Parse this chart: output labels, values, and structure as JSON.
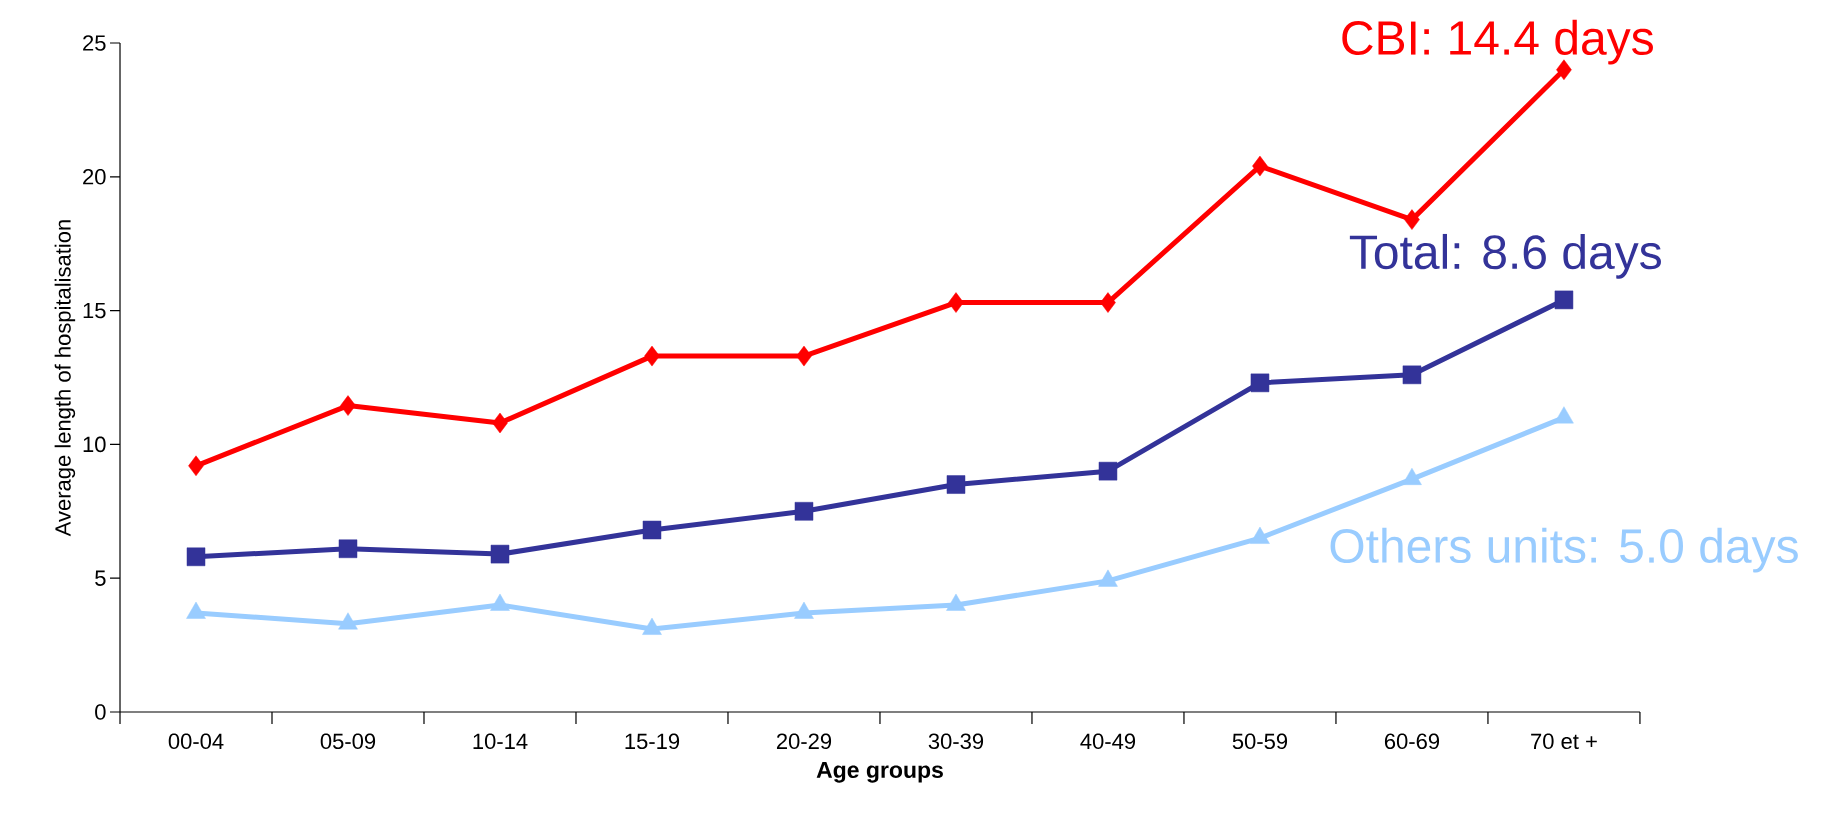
{
  "chart_data": {
    "type": "line",
    "xlabel": "Age groups",
    "ylabel": "Average length of hospitalisation",
    "categories": [
      "00-04",
      "05-09",
      "10-14",
      "15-19",
      "20-29",
      "30-39",
      "40-49",
      "50-59",
      "60-69",
      "70 et +"
    ],
    "ylim": [
      0,
      25
    ],
    "yticks": [
      0,
      5,
      10,
      15,
      20,
      25
    ],
    "grid": false,
    "series": [
      {
        "name": "CBI: 14.4 days",
        "color": "#ff0000",
        "marker": "diamond",
        "values": [
          9.2,
          11.45,
          10.8,
          13.3,
          13.3,
          15.3,
          15.3,
          20.4,
          18.4,
          24.0
        ]
      },
      {
        "name": "Total: 8.6 days",
        "color": "#333399",
        "marker": "square",
        "values": [
          5.8,
          6.1,
          5.9,
          6.8,
          7.5,
          8.5,
          9.0,
          12.3,
          12.6,
          15.4
        ]
      },
      {
        "name": "Others units: 5.0 days",
        "color": "#99ccff",
        "marker": "triangle",
        "values": [
          3.7,
          3.3,
          4.0,
          3.1,
          3.7,
          4.0,
          4.9,
          6.5,
          8.7,
          11.0
        ]
      }
    ]
  }
}
